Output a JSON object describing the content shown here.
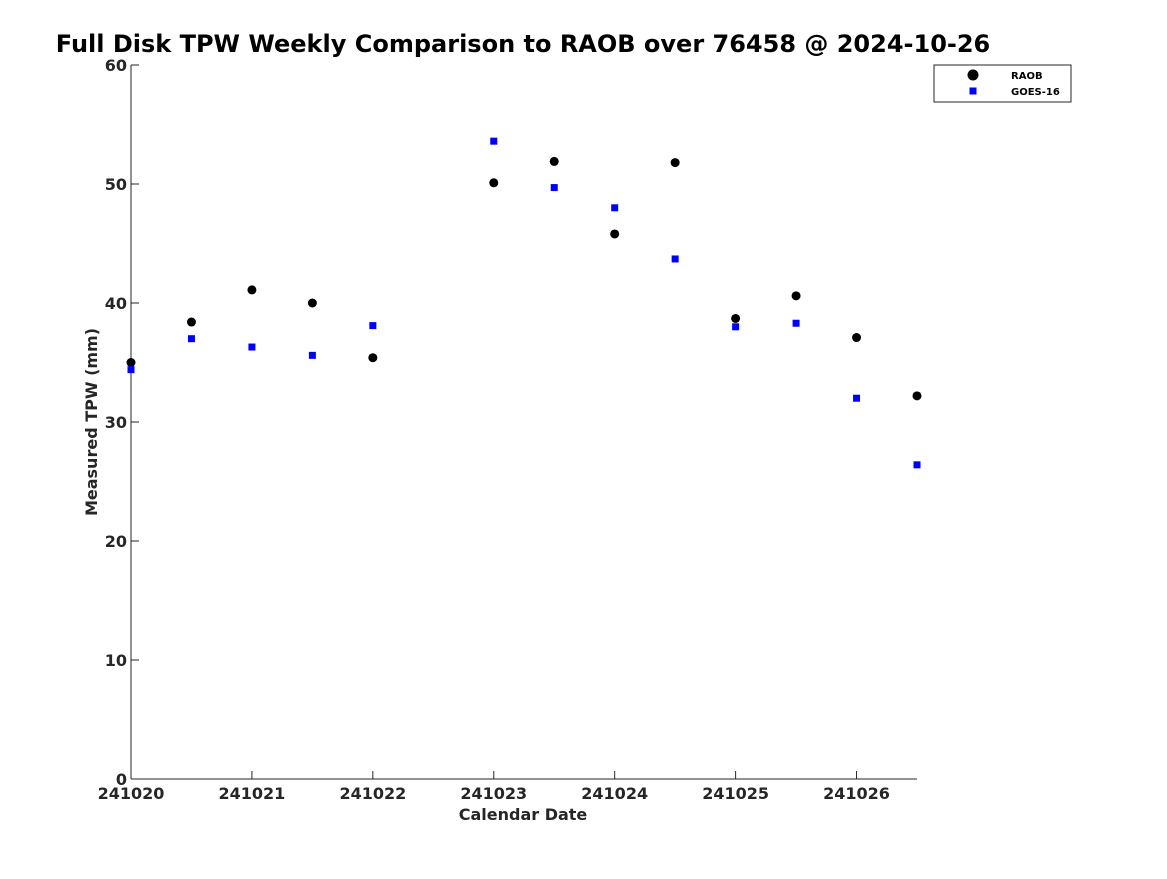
{
  "chart_data": {
    "type": "scatter",
    "title": "Full Disk TPW Weekly Comparison to RAOB over 76458 @ 2024-10-26",
    "xlabel": "Calendar Date",
    "ylabel": "Measured TPW (mm)",
    "xlim": [
      "241020",
      "241026.5"
    ],
    "ylim": [
      0,
      60
    ],
    "x_ticks": [
      "241020",
      "241021",
      "241022",
      "241023",
      "241024",
      "241025",
      "241026"
    ],
    "y_ticks": [
      0,
      10,
      20,
      30,
      40,
      50,
      60
    ],
    "grid": false,
    "legend_position": "top-right",
    "series": [
      {
        "name": "RAOB",
        "marker": "circle",
        "color": "#000000",
        "points": [
          {
            "x": "241020 00Z",
            "y": 35.0
          },
          {
            "x": "241020 12Z",
            "y": 38.4
          },
          {
            "x": "241021 00Z",
            "y": 41.1
          },
          {
            "x": "241021 12Z",
            "y": 40.0
          },
          {
            "x": "241022 00Z",
            "y": 35.4
          },
          {
            "x": "241023 00Z",
            "y": 50.1
          },
          {
            "x": "241023 12Z",
            "y": 51.9
          },
          {
            "x": "241024 00Z",
            "y": 45.8
          },
          {
            "x": "241024 12Z",
            "y": 51.8
          },
          {
            "x": "241025 00Z",
            "y": 38.7
          },
          {
            "x": "241025 12Z",
            "y": 40.6
          },
          {
            "x": "241026 00Z",
            "y": 37.1
          },
          {
            "x": "241026 12Z",
            "y": 32.2
          }
        ]
      },
      {
        "name": "GOES-16",
        "marker": "square",
        "color": "#0000ff",
        "points": [
          {
            "x": "241020 00Z",
            "y": 34.4
          },
          {
            "x": "241020 12Z",
            "y": 37.0
          },
          {
            "x": "241021 00Z",
            "y": 36.3
          },
          {
            "x": "241021 12Z",
            "y": 35.6
          },
          {
            "x": "241022 00Z",
            "y": 38.1
          },
          {
            "x": "241023 00Z",
            "y": 53.6
          },
          {
            "x": "241023 12Z",
            "y": 49.7
          },
          {
            "x": "241024 00Z",
            "y": 48.0
          },
          {
            "x": "241024 12Z",
            "y": 43.7
          },
          {
            "x": "241025 00Z",
            "y": 38.0
          },
          {
            "x": "241025 12Z",
            "y": 38.3
          },
          {
            "x": "241026 00Z",
            "y": 32.0
          },
          {
            "x": "241026 12Z",
            "y": 26.4
          }
        ]
      }
    ]
  }
}
